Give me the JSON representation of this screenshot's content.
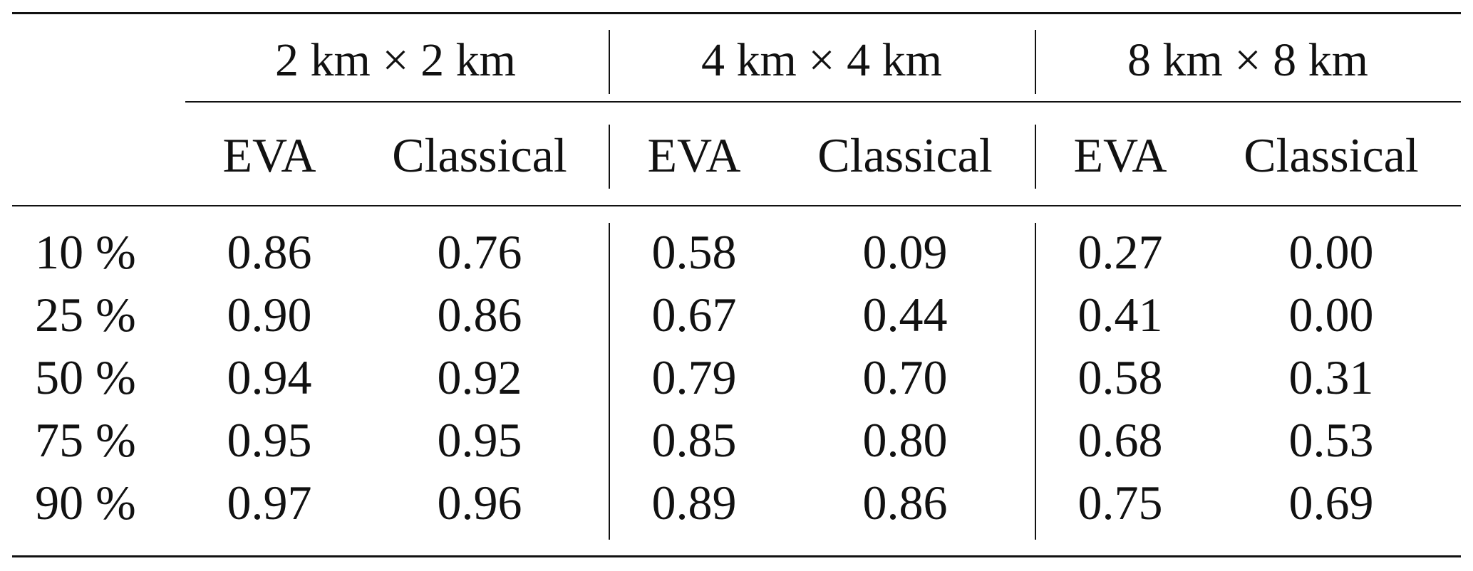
{
  "table": {
    "groups": [
      "2 km × 2 km",
      "4 km × 4 km",
      "8 km × 8 km"
    ],
    "subheaders": [
      "EVA",
      "Classical",
      "EVA",
      "Classical",
      "EVA",
      "Classical"
    ],
    "rows": [
      {
        "label": "10 %",
        "values": [
          "0.86",
          "0.76",
          "0.58",
          "0.09",
          "0.27",
          "0.00"
        ]
      },
      {
        "label": "25 %",
        "values": [
          "0.90",
          "0.86",
          "0.67",
          "0.44",
          "0.41",
          "0.00"
        ]
      },
      {
        "label": "50 %",
        "values": [
          "0.94",
          "0.92",
          "0.79",
          "0.70",
          "0.58",
          "0.31"
        ]
      },
      {
        "label": "75 %",
        "values": [
          "0.95",
          "0.95",
          "0.85",
          "0.80",
          "0.68",
          "0.53"
        ]
      },
      {
        "label": "90 %",
        "values": [
          "0.97",
          "0.96",
          "0.89",
          "0.86",
          "0.75",
          "0.69"
        ]
      }
    ]
  }
}
